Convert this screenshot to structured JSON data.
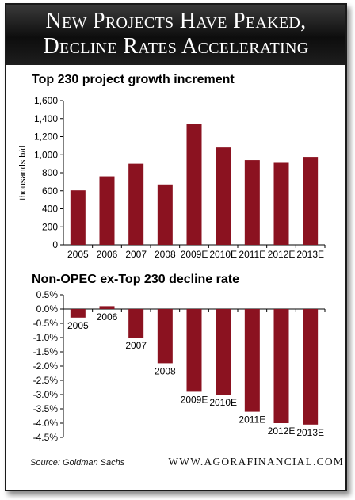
{
  "header": {
    "line1": "New Projects Have Peaked,",
    "line2": "Decline Rates Accelerating"
  },
  "footer": {
    "source": "Source: Goldman Sachs",
    "website": "WWW.AGORAFINANCIAL.COM"
  },
  "colors": {
    "bar": "#8b1220",
    "axis": "#000000",
    "header_bg": "#111111"
  },
  "chart_data": [
    {
      "type": "bar",
      "title": "Top 230 project growth increment",
      "ylabel": "thousands b/d",
      "xlabel": "",
      "categories": [
        "2005",
        "2006",
        "2007",
        "2008",
        "2009E",
        "2010E",
        "2011E",
        "2012E",
        "2013E"
      ],
      "values": [
        605,
        760,
        900,
        670,
        1340,
        1080,
        940,
        910,
        975
      ],
      "ylim": [
        0,
        1600
      ],
      "yticks": [
        "0",
        "200",
        "400",
        "600",
        "800",
        "1,000",
        "1,200",
        "1,400",
        "1,600"
      ],
      "ytick_values": [
        0,
        200,
        400,
        600,
        800,
        1000,
        1200,
        1400,
        1600
      ],
      "grid": false
    },
    {
      "type": "bar",
      "title": "Non-OPEC ex-Top 230 decline rate",
      "ylabel": "",
      "xlabel": "",
      "categories": [
        "2005",
        "2006",
        "2007",
        "2008",
        "2009E",
        "2010E",
        "2011E",
        "2012E",
        "2013E"
      ],
      "values": [
        -0.3,
        0.1,
        -1.0,
        -1.9,
        -2.9,
        -3.0,
        -3.6,
        -4.0,
        -4.05
      ],
      "ylim": [
        -4.5,
        0.5
      ],
      "yticks": [
        "0.5%",
        "0.0%",
        "-0.5%",
        "-1.0%",
        "-1.5%",
        "-2.0%",
        "-2.5%",
        "-3.0%",
        "-3.5%",
        "-4.0%",
        "-4.5%"
      ],
      "ytick_values": [
        0.5,
        0.0,
        -0.5,
        -1.0,
        -1.5,
        -2.0,
        -2.5,
        -3.0,
        -3.5,
        -4.0,
        -4.5
      ],
      "grid": false
    }
  ]
}
